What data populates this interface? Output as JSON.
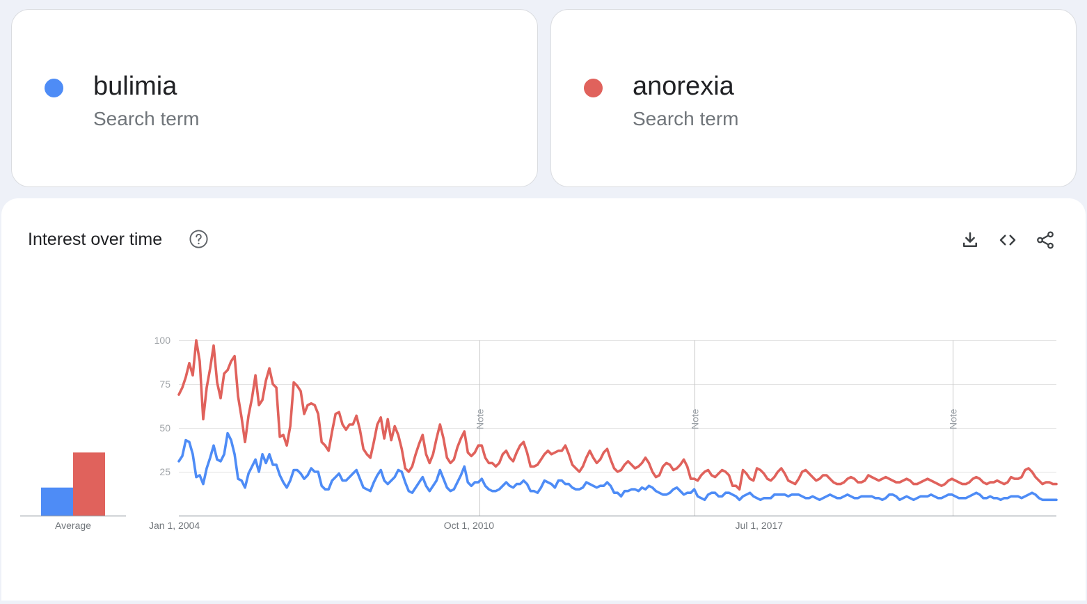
{
  "terms": [
    {
      "name": "bulimia",
      "type": "Search term",
      "color": "#4e8cf6"
    },
    {
      "name": "anorexia",
      "type": "Search term",
      "color": "#e0625c"
    }
  ],
  "panel": {
    "title": "Interest over time",
    "icons": {
      "help": "help-circle-icon",
      "download": "download-icon",
      "embed": "code-icon",
      "share": "share-icon"
    }
  },
  "chart_data": [
    {
      "type": "bar",
      "categories": [
        "Average"
      ],
      "series": [
        {
          "name": "bulimia",
          "values": [
            16
          ]
        },
        {
          "name": "anorexia",
          "values": [
            36
          ]
        }
      ],
      "colors": [
        "#4e8cf6",
        "#e0625c"
      ]
    },
    {
      "type": "line",
      "x_start": "2004-01",
      "x_end": "2024-06",
      "x_ticks": [
        "Jan 1, 2004",
        "Oct 1, 2010",
        "Jul 1, 2017"
      ],
      "y_ticks": [
        100,
        75,
        50,
        25
      ],
      "ylim": [
        0,
        100
      ],
      "grid": true,
      "annotations": [
        {
          "label": "Note",
          "date": "2011-01"
        },
        {
          "label": "Note",
          "date": "2016-01"
        },
        {
          "label": "Note",
          "date": "2022-01"
        }
      ],
      "series": [
        {
          "name": "bulimia",
          "color": "#4e8cf6",
          "values": [
            31,
            34,
            43,
            42,
            35,
            22,
            23,
            18,
            27,
            33,
            40,
            32,
            31,
            35,
            47,
            43,
            35,
            21,
            20,
            16,
            24,
            28,
            32,
            25,
            35,
            30,
            35,
            29,
            29,
            23,
            19,
            16,
            20,
            26,
            26,
            24,
            21,
            23,
            27,
            25,
            25,
            17,
            15,
            15,
            20,
            22,
            24,
            20,
            20,
            22,
            24,
            26,
            21,
            16,
            15,
            14,
            19,
            23,
            26,
            20,
            18,
            20,
            22,
            26,
            25,
            19,
            14,
            13,
            16,
            19,
            22,
            17,
            14,
            17,
            20,
            26,
            21,
            16,
            14,
            15,
            19,
            23,
            28,
            19,
            17,
            19,
            19,
            21,
            17,
            15,
            14,
            14,
            15,
            17,
            19,
            17,
            16,
            18,
            18,
            20,
            18,
            14,
            14,
            13,
            16,
            20,
            19,
            18,
            16,
            20,
            20,
            18,
            18,
            16,
            15,
            15,
            16,
            19,
            18,
            17,
            16,
            17,
            17,
            19,
            17,
            13,
            13,
            11,
            14,
            14,
            15,
            15,
            14,
            16,
            15,
            17,
            16,
            14,
            13,
            12,
            12,
            13,
            15,
            16,
            14,
            12,
            13,
            13,
            15,
            11,
            10,
            9,
            12,
            13,
            13,
            11,
            11,
            13,
            13,
            12,
            11,
            9,
            11,
            12,
            13,
            11,
            10,
            9,
            10,
            10,
            10,
            12,
            12,
            12,
            12,
            11,
            12,
            12,
            12,
            11,
            10,
            10,
            11,
            10,
            9,
            10,
            11,
            12,
            11,
            10,
            10,
            11,
            12,
            11,
            10,
            10,
            11,
            11,
            11,
            11,
            10,
            10,
            9,
            10,
            12,
            12,
            11,
            9,
            10,
            11,
            10,
            9,
            10,
            11,
            11,
            11,
            12,
            11,
            10,
            10,
            11,
            12,
            12,
            11,
            10,
            10,
            10,
            11,
            12,
            13,
            12,
            10,
            10,
            11,
            10,
            10,
            9,
            10,
            10,
            11,
            11,
            11,
            10,
            11,
            12,
            13,
            12,
            10,
            9,
            9,
            9,
            9,
            9
          ]
        },
        {
          "name": "anorexia",
          "color": "#e0625c",
          "values": [
            69,
            73,
            79,
            87,
            80,
            100,
            88,
            55,
            73,
            84,
            97,
            76,
            67,
            81,
            83,
            88,
            91,
            68,
            56,
            42,
            57,
            67,
            80,
            63,
            66,
            77,
            84,
            75,
            73,
            45,
            46,
            40,
            51,
            76,
            74,
            71,
            58,
            63,
            64,
            63,
            58,
            42,
            40,
            37,
            48,
            58,
            59,
            52,
            49,
            52,
            52,
            57,
            49,
            38,
            35,
            33,
            42,
            52,
            56,
            44,
            55,
            43,
            51,
            46,
            38,
            27,
            25,
            28,
            35,
            41,
            46,
            35,
            30,
            35,
            44,
            52,
            44,
            33,
            30,
            32,
            39,
            44,
            48,
            36,
            34,
            36,
            40,
            40,
            33,
            30,
            30,
            28,
            30,
            35,
            37,
            33,
            31,
            36,
            40,
            42,
            36,
            28,
            28,
            29,
            32,
            35,
            37,
            35,
            36,
            37,
            37,
            40,
            35,
            29,
            27,
            25,
            28,
            33,
            37,
            33,
            30,
            32,
            36,
            38,
            32,
            27,
            25,
            26,
            29,
            31,
            29,
            27,
            28,
            30,
            33,
            30,
            25,
            22,
            23,
            28,
            30,
            29,
            26,
            27,
            29,
            32,
            28,
            21,
            21,
            20,
            23,
            25,
            26,
            23,
            22,
            24,
            26,
            25,
            23,
            17,
            17,
            15,
            26,
            24,
            21,
            20,
            27,
            26,
            24,
            21,
            20,
            22,
            25,
            27,
            24,
            20,
            19,
            18,
            21,
            25,
            26,
            24,
            22,
            20,
            21,
            23,
            23,
            21,
            19,
            18,
            18,
            19,
            21,
            22,
            21,
            19,
            19,
            20,
            23,
            22,
            21,
            20,
            21,
            22,
            21,
            20,
            19,
            19,
            20,
            21,
            20,
            18,
            18,
            19,
            20,
            21,
            20,
            19,
            18,
            17,
            18,
            20,
            21,
            20,
            19,
            18,
            18,
            19,
            21,
            22,
            21,
            19,
            18,
            19,
            19,
            20,
            19,
            18,
            19,
            22,
            21,
            21,
            22,
            26,
            27,
            25,
            22,
            20,
            18,
            19,
            19,
            18,
            18
          ]
        }
      ]
    }
  ]
}
